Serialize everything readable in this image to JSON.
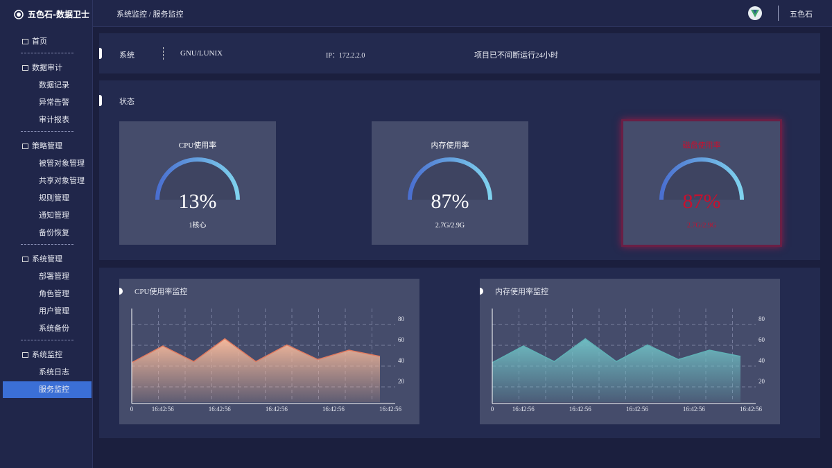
{
  "sidebar": {
    "logo": "五色石-数据卫士",
    "active_item": "服务监控",
    "menu": [
      {
        "label": "首页",
        "children": []
      },
      {
        "label": "数据审计",
        "children": [
          "数据记录",
          "异常告警",
          "审计报表"
        ]
      },
      {
        "label": "策略管理",
        "children": [
          "被管对象管理",
          "共享对象管理",
          "规则管理",
          "通知管理",
          "备份恢复"
        ]
      },
      {
        "label": "系统管理",
        "children": [
          "部署管理",
          "角色管理",
          "用户管理",
          "系统备份"
        ]
      },
      {
        "label": "系统监控",
        "children": [
          "系统日志",
          "服务监控"
        ]
      }
    ]
  },
  "header": {
    "breadcrumb": "系统监控 / 服务监控",
    "user": "五色石"
  },
  "system_info": {
    "label": "系统",
    "os": "GNU/LUNIX",
    "ip": "IP：172.2.2.0",
    "uptime": "项目已不间断运行24小时"
  },
  "status": {
    "title": "状态",
    "gauges": [
      {
        "title": "CPU使用率",
        "value": "13%",
        "detail": "1核心",
        "alert": false
      },
      {
        "title": "内存使用率",
        "value": "87%",
        "detail": "2.7G/2.9G",
        "alert": false
      },
      {
        "title": "磁盘使用率",
        "value": "87%",
        "detail": "2.7G/2.9G",
        "alert": true
      }
    ]
  },
  "monitors": [
    {
      "type": "area",
      "title": "CPU使用率监控",
      "values": [
        38,
        54,
        39,
        61,
        39,
        55,
        41,
        50,
        44
      ],
      "ylim": [
        0,
        90
      ],
      "yticks": [
        20,
        40,
        60,
        80
      ],
      "xlabels": [
        "0",
        "16:42:56",
        "16:42:56",
        "16:42:56",
        "16:42:56",
        "16:42:56"
      ],
      "color": "#e07a5f",
      "fill": "#f4b89b"
    },
    {
      "type": "area",
      "title": "内存使用率监控",
      "values": [
        38,
        54,
        39,
        61,
        39,
        55,
        41,
        50,
        44
      ],
      "ylim": [
        0,
        90
      ],
      "yticks": [
        20,
        40,
        60,
        80
      ],
      "xlabels": [
        "0",
        "16:42:56",
        "16:42:56",
        "16:42:56",
        "16:42:56",
        "16:42:56"
      ],
      "color": "#5fb0b5",
      "fill": "#6fbcc2"
    }
  ]
}
